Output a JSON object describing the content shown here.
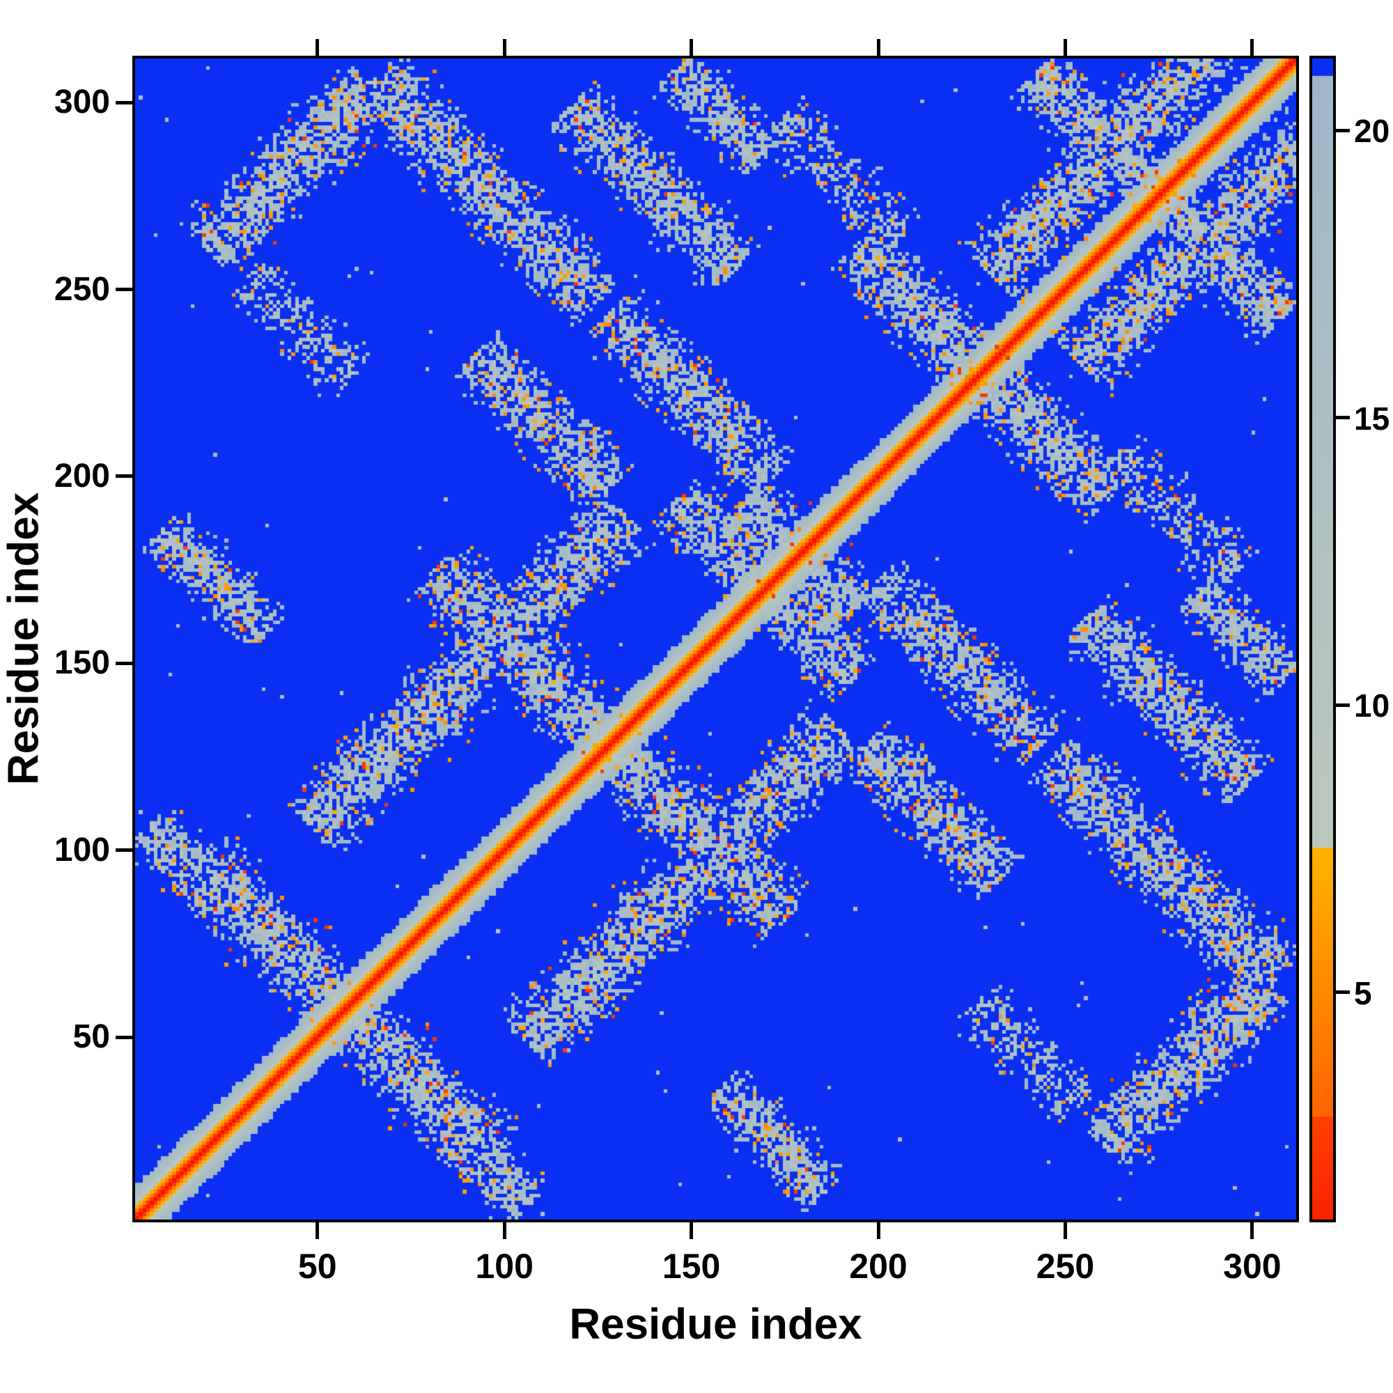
{
  "figure": {
    "xlabel": "Residue index",
    "ylabel": "Residue index"
  },
  "chart_data": {
    "type": "heatmap",
    "title": "",
    "xlabel": "Residue index",
    "ylabel": "Residue index",
    "matrix_size": [
      312,
      312
    ],
    "x_range": [
      1,
      312
    ],
    "y_range": [
      1,
      312
    ],
    "x_ticks": [
      50,
      100,
      150,
      200,
      250,
      300
    ],
    "y_ticks": [
      50,
      100,
      150,
      200,
      250,
      300
    ],
    "symmetric": true,
    "grid": false,
    "colorbar": {
      "side": "right",
      "min": 1.0,
      "max": 21.3,
      "far_cutoff": 21.0,
      "ticks": [
        5,
        10,
        15,
        20
      ]
    },
    "colormap": {
      "far_color": "#0b2ff2",
      "red_range": [
        "#f81200",
        "#ff4000"
      ],
      "red_max": 2.8,
      "orange_range": [
        "#ff6400",
        "#ffb400"
      ],
      "orange_max": 7.5,
      "gray_range": [
        "#bcc8bd",
        "#9fb7c9"
      ]
    },
    "diagonal": {
      "half_width": 10,
      "value_per_offset": 2.35
    },
    "noise": {
      "gap_prob": 0.33,
      "sparse_gap_prob": 0.58,
      "orange_prob": 0.1,
      "red_prob": 0.012,
      "scatter_prob": 0.0015
    },
    "features": [
      {
        "dir": "anti",
        "cx": 57,
        "cy": 57,
        "len": 40,
        "w": 7
      },
      {
        "dir": "anti",
        "cx": 14,
        "cy": 96,
        "len": 10,
        "w": 5
      },
      {
        "dir": "anti",
        "cx": 22,
        "cy": 172,
        "len": 14,
        "w": 5
      },
      {
        "dir": "par",
        "cx": 42,
        "cy": 283,
        "len": 22,
        "w": 7
      },
      {
        "dir": "anti",
        "cx": 95,
        "cy": 277,
        "len": 30,
        "w": 7
      },
      {
        "dir": "anti",
        "cx": 140,
        "cy": 278,
        "len": 22,
        "w": 6
      },
      {
        "dir": "anti",
        "cx": 158,
        "cy": 298,
        "len": 12,
        "w": 5
      },
      {
        "dir": "par",
        "cx": 90,
        "cy": 148,
        "len": 42,
        "w": 7
      },
      {
        "dir": "anti",
        "cx": 128,
        "cy": 128,
        "len": 47,
        "w": 7
      },
      {
        "dir": "anti",
        "cx": 170,
        "cy": 170,
        "len": 24,
        "w": 6
      },
      {
        "dir": "anti",
        "cx": 173,
        "cy": 183,
        "len": 10,
        "w": 9
      },
      {
        "dir": "anti",
        "cx": 110,
        "cy": 215,
        "len": 18,
        "w": 6
      },
      {
        "dir": "anti",
        "cx": 150,
        "cy": 222,
        "len": 22,
        "w": 6
      },
      {
        "dir": "anti",
        "cx": 228,
        "cy": 228,
        "len": 34,
        "w": 7
      },
      {
        "dir": "par",
        "cx": 268,
        "cy": 293,
        "len": 38,
        "w": 7
      },
      {
        "dir": "anti",
        "cx": 276,
        "cy": 276,
        "len": 33,
        "w": 7
      },
      {
        "dir": "anti",
        "cx": 45,
        "cy": 240,
        "len": 14,
        "w": 5,
        "sparse": true
      },
      {
        "dir": "anti",
        "cx": 190,
        "cy": 280,
        "len": 16,
        "w": 5,
        "sparse": true
      }
    ]
  }
}
